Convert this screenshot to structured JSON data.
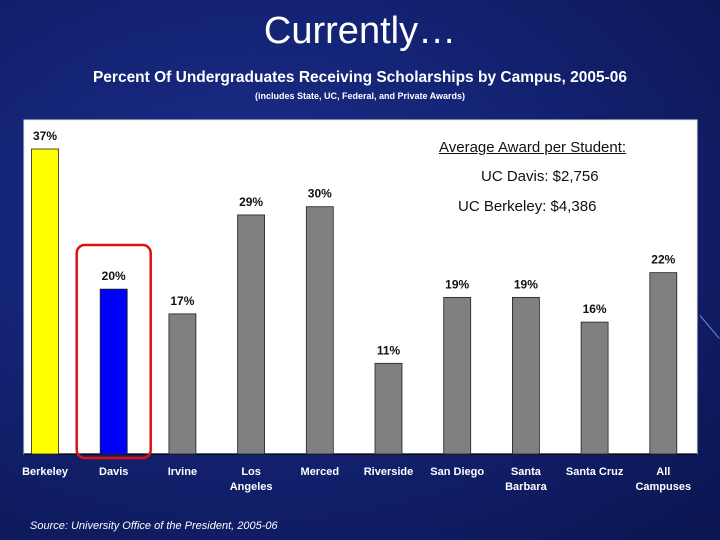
{
  "slide": {
    "title": "Currently…",
    "source": "Source: University Office of the President, 2005-06"
  },
  "annotation": {
    "heading": "Average Award per Student:",
    "line1": "UC Davis: $2,756",
    "line2": "UC Berkeley: $4,386"
  },
  "colors": {
    "background": "#142476",
    "berkeley_bar": "#ffff00",
    "davis_bar": "#0000ff",
    "other_bars": "#808080",
    "highlight_box": "#e01010",
    "plot_background": "#ffffff"
  },
  "chart_data": {
    "type": "bar",
    "title": "Percent Of Undergraduates Receiving Scholarships by Campus, 2005-06",
    "subtitle": "(includes State, UC, Federal, and Private Awards)",
    "categories": [
      "Berkeley",
      "Davis",
      "Irvine",
      "Los Angeles",
      "Merced",
      "Riverside",
      "San Diego",
      "Santa Barbara",
      "Santa Cruz",
      "All Campuses"
    ],
    "category_lines": [
      [
        "Berkeley"
      ],
      [
        "Davis"
      ],
      [
        "Irvine"
      ],
      [
        "Los",
        "Angeles"
      ],
      [
        "Merced"
      ],
      [
        "Riverside"
      ],
      [
        "San Diego"
      ],
      [
        "Santa",
        "Barbara"
      ],
      [
        "Santa Cruz"
      ],
      [
        "All",
        "Campuses"
      ]
    ],
    "values": [
      37,
      20,
      17,
      29,
      30,
      11,
      19,
      19,
      16,
      22
    ],
    "data_labels": [
      "37%",
      "20%",
      "17%",
      "29%",
      "30%",
      "11%",
      "19%",
      "19%",
      "16%",
      "22%"
    ],
    "bar_colors": [
      "#ffff00",
      "#0000ff",
      "#808080",
      "#808080",
      "#808080",
      "#808080",
      "#808080",
      "#808080",
      "#808080",
      "#808080"
    ],
    "highlighted_category": "Davis",
    "ylim": [
      0,
      37
    ],
    "grid": false,
    "legend": "none",
    "xlabel": "",
    "ylabel": ""
  }
}
